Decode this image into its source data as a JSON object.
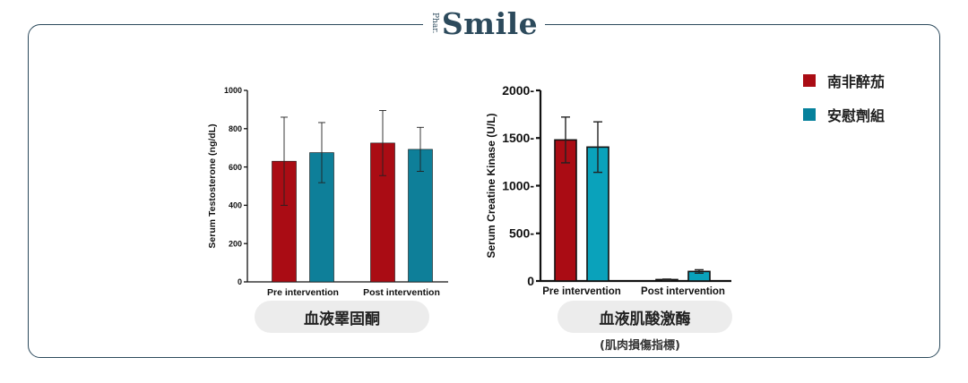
{
  "brand": {
    "prefix": "Phar.",
    "name": "Smile"
  },
  "legend": [
    {
      "label": "南非醉茄",
      "color": "#aa0c14"
    },
    {
      "label": "安慰劑組",
      "color": "#06819c"
    }
  ],
  "chart_data": [
    {
      "type": "bar",
      "title": "血液睪固酮",
      "subtitle": "",
      "xlabel": "",
      "ylabel": "Serum Testosterone (ng/dL)",
      "ylim": [
        0,
        1000
      ],
      "yticks": [
        0,
        200,
        400,
        600,
        800,
        1000
      ],
      "ytick_labels": [
        "0",
        "200",
        "400",
        "600",
        "800",
        "1000"
      ],
      "categories": [
        "Pre intervention",
        "Post intervention"
      ],
      "series": [
        {
          "name": "南非醉茄",
          "color": "#aa0c14",
          "values": [
            630,
            725
          ],
          "error": [
            230,
            170
          ]
        },
        {
          "name": "安慰劑組",
          "color": "#0e7f99",
          "values": [
            675,
            692
          ],
          "error": [
            157,
            115
          ]
        }
      ]
    },
    {
      "type": "bar",
      "title": "血液肌酸激酶",
      "subtitle": "(肌肉損傷指標)",
      "xlabel": "",
      "ylabel": "Serum Creatine Kinase (U/L)",
      "ylim": [
        0,
        2000
      ],
      "yticks": [
        0,
        500,
        1000,
        1500,
        2000
      ],
      "ytick_labels": [
        "0",
        "500-",
        "1000-",
        "1500-",
        "2000-"
      ],
      "categories": [
        "Pre intervention",
        "Post intervention"
      ],
      "series": [
        {
          "name": "南非醉茄",
          "color": "#aa0c14",
          "values": [
            1480,
            15
          ],
          "error": [
            240,
            5
          ]
        },
        {
          "name": "安慰劑組",
          "color": "#0aa2bb",
          "values": [
            1405,
            100
          ],
          "error": [
            265,
            18
          ]
        }
      ]
    }
  ]
}
